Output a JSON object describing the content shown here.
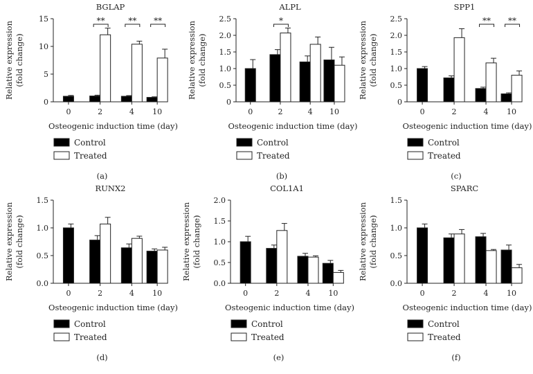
{
  "legend": {
    "control_label": "Control",
    "treated_label": "Treated"
  },
  "colors": {
    "control": "#000000",
    "treated": "#ffffff",
    "axis": "#222222",
    "text": "#222222"
  },
  "chart_data": [
    {
      "type": "bar",
      "title": "BGLAP",
      "panel_label": "(a)",
      "xlabel": "Osteogenic induction time (day)",
      "ylabel_lines": [
        "Relative expression",
        "(fold change)"
      ],
      "categories": [
        "0",
        "2",
        "4",
        "10"
      ],
      "ylim": [
        0,
        15
      ],
      "yticks": [
        "0",
        "5",
        "10",
        "15"
      ],
      "series": [
        {
          "name": "Control",
          "values": [
            1.0,
            1.05,
            1.0,
            0.8
          ],
          "errors": [
            0.15,
            0.15,
            0.12,
            0.1
          ]
        },
        {
          "name": "Treated",
          "values": [
            null,
            12.1,
            10.4,
            7.9
          ],
          "errors": [
            null,
            1.2,
            0.55,
            1.6
          ]
        }
      ],
      "significance": [
        {
          "category": "2",
          "label": "**"
        },
        {
          "category": "4",
          "label": "**"
        },
        {
          "category": "10",
          "label": "**"
        }
      ]
    },
    {
      "type": "bar",
      "title": "ALPL",
      "panel_label": "(b)",
      "xlabel": "Osteogenic induction time (day)",
      "ylabel_lines": [
        "Relative expression",
        "(fold change)"
      ],
      "categories": [
        "0",
        "2",
        "4",
        "10"
      ],
      "ylim": [
        0,
        2.5
      ],
      "yticks": [
        "0",
        "0.5",
        "1.0",
        "1.5",
        "2.0",
        "2.5"
      ],
      "series": [
        {
          "name": "Control",
          "values": [
            1.0,
            1.42,
            1.2,
            1.26
          ],
          "errors": [
            0.27,
            0.15,
            0.18,
            0.38
          ]
        },
        {
          "name": "Treated",
          "values": [
            null,
            2.07,
            1.73,
            1.1
          ],
          "errors": [
            null,
            0.15,
            0.22,
            0.25
          ]
        }
      ],
      "significance": [
        {
          "category": "2",
          "label": "*"
        }
      ]
    },
    {
      "type": "bar",
      "title": "SPP1",
      "panel_label": "(c)",
      "xlabel": "Osteogenic induction time (day)",
      "ylabel_lines": [
        "Relative expression",
        "(fold change)"
      ],
      "categories": [
        "0",
        "2",
        "4",
        "10"
      ],
      "ylim": [
        0,
        2.5
      ],
      "yticks": [
        "0",
        "0.5",
        "1.0",
        "1.5",
        "2.0",
        "2.5"
      ],
      "series": [
        {
          "name": "Control",
          "values": [
            1.0,
            0.72,
            0.4,
            0.24
          ],
          "errors": [
            0.06,
            0.06,
            0.04,
            0.03
          ]
        },
        {
          "name": "Treated",
          "values": [
            null,
            1.93,
            1.17,
            0.8
          ],
          "errors": [
            null,
            0.27,
            0.14,
            0.13
          ]
        }
      ],
      "significance": [
        {
          "category": "4",
          "label": "**"
        },
        {
          "category": "10",
          "label": "**"
        }
      ]
    },
    {
      "type": "bar",
      "title": "RUNX2",
      "panel_label": "(d)",
      "xlabel": "Osteogenic induction time (day)",
      "ylabel_lines": [
        "Relative expression",
        "(fold change)"
      ],
      "categories": [
        "0",
        "2",
        "4",
        "10"
      ],
      "ylim": [
        0,
        1.5
      ],
      "yticks": [
        "0.0",
        "0.5",
        "1.0",
        "1.5"
      ],
      "series": [
        {
          "name": "Control",
          "values": [
            1.0,
            0.78,
            0.64,
            0.58
          ],
          "errors": [
            0.07,
            0.08,
            0.07,
            0.04
          ]
        },
        {
          "name": "Treated",
          "values": [
            null,
            1.07,
            0.81,
            0.6
          ],
          "errors": [
            null,
            0.12,
            0.04,
            0.05
          ]
        }
      ],
      "significance": []
    },
    {
      "type": "bar",
      "title": "COL1A1",
      "panel_label": "(e)",
      "xlabel": "Osteogenic induction time (day)",
      "ylabel_lines": [
        "Relative expression",
        "(fold change)"
      ],
      "categories": [
        "0",
        "2",
        "4",
        "10"
      ],
      "ylim": [
        0,
        2.0
      ],
      "yticks": [
        "0.0",
        "0.5",
        "1.0",
        "1.5",
        "2.0"
      ],
      "series": [
        {
          "name": "Control",
          "values": [
            1.0,
            0.84,
            0.65,
            0.48
          ],
          "errors": [
            0.13,
            0.08,
            0.07,
            0.07
          ]
        },
        {
          "name": "Treated",
          "values": [
            null,
            1.27,
            0.63,
            0.26
          ],
          "errors": [
            null,
            0.17,
            0.03,
            0.05
          ]
        }
      ],
      "significance": []
    },
    {
      "type": "bar",
      "title": "SPARC",
      "panel_label": "(f)",
      "xlabel": "Osteogenic induction time (day)",
      "ylabel_lines": [
        "Relative expression",
        "(fold change)"
      ],
      "categories": [
        "0",
        "2",
        "4",
        "10"
      ],
      "ylim": [
        0,
        1.5
      ],
      "yticks": [
        "0.0",
        "0.5",
        "1.0",
        "1.5"
      ],
      "series": [
        {
          "name": "Control",
          "values": [
            1.0,
            0.82,
            0.84,
            0.6
          ],
          "errors": [
            0.07,
            0.07,
            0.06,
            0.09
          ]
        },
        {
          "name": "Treated",
          "values": [
            null,
            0.89,
            0.59,
            0.28
          ],
          "errors": [
            null,
            0.08,
            0.02,
            0.06
          ]
        }
      ],
      "significance": []
    }
  ]
}
